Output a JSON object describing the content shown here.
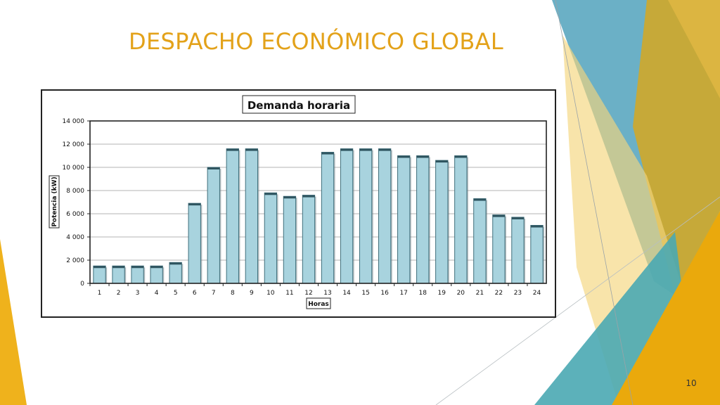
{
  "slide": {
    "title": "DESPACHO ECONÓMICO GLOBAL",
    "page_number": "10"
  },
  "colors": {
    "title": "#e3a21a",
    "bar_fill": "#a8d3de",
    "bar_stroke": "#3f6f7c",
    "deco_blue": "#5ba7c0",
    "deco_gold": "#e9b52a"
  },
  "chart_data": {
    "type": "bar",
    "title": "Demanda horaria",
    "xlabel": "Horas",
    "ylabel": "Potencia (kW)",
    "ylim": [
      0,
      14000
    ],
    "y_ticks": [
      0,
      2000,
      4000,
      6000,
      8000,
      10000,
      12000,
      14000
    ],
    "y_tick_labels": [
      "0",
      "2 000",
      "4 000",
      "6 000",
      "8 000",
      "10 000",
      "12 000",
      "14 000"
    ],
    "grid": true,
    "legend": "none",
    "categories": [
      "1",
      "2",
      "3",
      "4",
      "5",
      "6",
      "7",
      "8",
      "9",
      "10",
      "11",
      "12",
      "13",
      "14",
      "15",
      "16",
      "17",
      "18",
      "19",
      "20",
      "21",
      "22",
      "23",
      "24"
    ],
    "values": [
      1500,
      1500,
      1500,
      1500,
      1800,
      6900,
      10000,
      11600,
      11600,
      7800,
      7500,
      7600,
      11300,
      11600,
      11600,
      11600,
      11000,
      11000,
      10600,
      11000,
      7300,
      5900,
      5700,
      5000
    ]
  }
}
